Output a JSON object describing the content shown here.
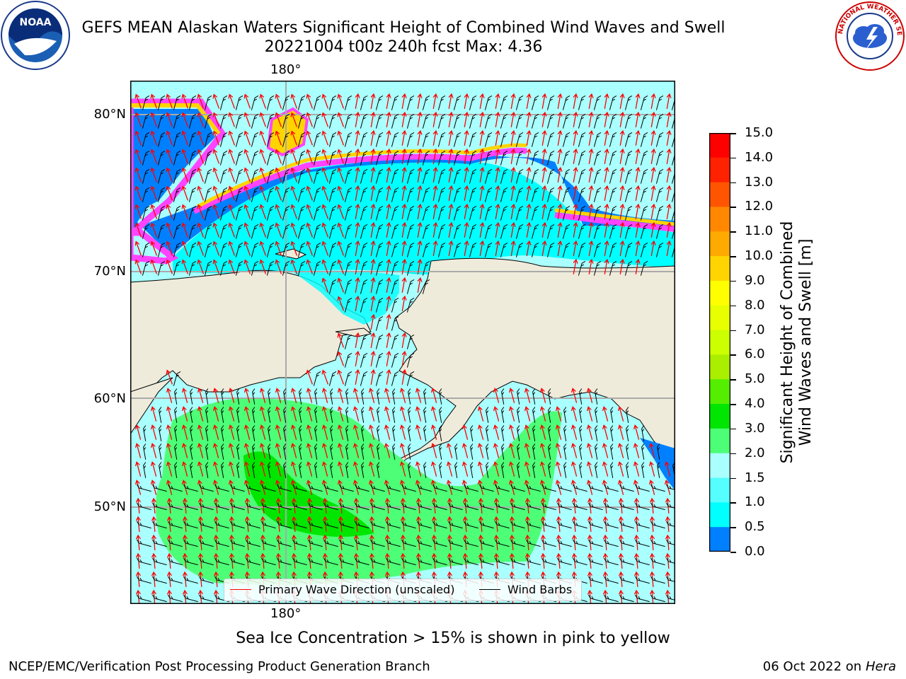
{
  "title_line1": "GEFS MEAN Alaskan Waters Significant Height of Combined Wind Waves and Swell",
  "title_line2": "20221004 t00z 240h fcst   Max: 4.36",
  "logos": {
    "left": "noaa-logo",
    "right": "nws-logo",
    "right_text": "NATIONAL WEATHER SERVICE",
    "left_text": "NOAA"
  },
  "map": {
    "lon_label_top": "180°",
    "lon_label_bottom": "180°",
    "lat_labels": [
      "80°N",
      "70°N",
      "60°N",
      "50°N"
    ],
    "colors": {
      "land": "#efebdb",
      "ocean_low": "#00ffff",
      "ocean_mid": "#aaffff",
      "ocean_high": "#4dff77",
      "peak": "#00e600",
      "ice_edge": "#ff44ff",
      "ice_yellow": "#ffd400",
      "deep_blue": "#0080ff"
    },
    "legend": {
      "wave_dir": "Primary Wave Direction (unscaled)",
      "wind_barbs": "Wind Barbs",
      "wave_color": "#ff0000",
      "barb_color": "#000000"
    }
  },
  "colorbar": {
    "label_line1": "Significant Height of Combined",
    "label_line2": "Wind Waves and Swell [m]",
    "ticks": [
      "15.0",
      "14.0",
      "13.0",
      "12.0",
      "11.0",
      "10.0",
      "9.0",
      "8.0",
      "7.0",
      "6.0",
      "5.0",
      "4.0",
      "3.0",
      "2.0",
      "1.5",
      "1.0",
      "0.5",
      "0.0"
    ],
    "colors": [
      "#ff0000",
      "#ff2200",
      "#ff5500",
      "#ff8800",
      "#ffaa00",
      "#ffd400",
      "#ffff00",
      "#e8ff00",
      "#ccff00",
      "#aaee00",
      "#55ee00",
      "#00e600",
      "#4dff77",
      "#aaffff",
      "#55ffff",
      "#00ffff",
      "#0080ff",
      "#0000ff"
    ]
  },
  "ice_note": "Sea Ice Concentration > 15% is shown in pink to yellow",
  "footer_left": "NCEP/EMC/Verification Post Processing Product Generation Branch",
  "footer_right_date": "06 Oct 2022 on",
  "footer_right_host": "Hera"
}
